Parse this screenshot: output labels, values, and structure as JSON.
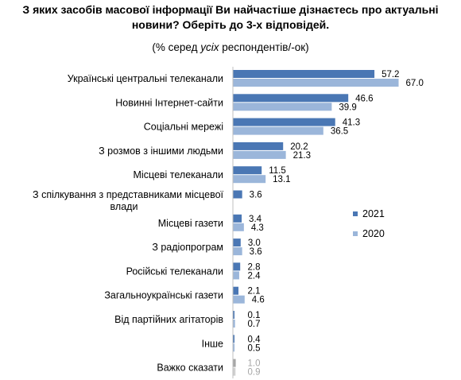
{
  "chart_data": {
    "type": "bar",
    "orientation": "horizontal",
    "title_lines": [
      "З яких засобів масової інформації Ви найчастіше дізнаєтесь про актуальні",
      "новини? Оберіть до 3-х відповідей."
    ],
    "subtitle": {
      "prefix": "(% серед ",
      "emphasis": "усіх",
      "suffix": " респондентів/-ок)"
    },
    "categories": [
      [
        "Українські центральні телеканали"
      ],
      [
        "Новинні Інтернет-сайти"
      ],
      [
        "Соціальні мережі"
      ],
      [
        "З розмов з іншими людьми"
      ],
      [
        "Місцеві телеканали"
      ],
      [
        "З спілкування з представниками місцевої",
        "влади"
      ],
      [
        "Місцеві газети"
      ],
      [
        "З радіопрограм"
      ],
      [
        "Російські телеканали"
      ],
      [
        "Загальноукраїнські газети"
      ],
      [
        "Від партійних агітаторів"
      ],
      [
        "Інше"
      ],
      [
        "Важко сказати"
      ]
    ],
    "series": [
      {
        "name": "2021",
        "color": "#4a77b4",
        "values": [
          57.2,
          46.6,
          41.3,
          20.2,
          11.5,
          3.6,
          3.4,
          3.0,
          2.8,
          2.1,
          0.1,
          0.4,
          1.0
        ],
        "labels": [
          "57.2",
          "46.6",
          "41.3",
          "20.2",
          "11.5",
          "3.6",
          "3.4",
          "3.0",
          "2.8",
          "2.1",
          "0.1",
          "0.4",
          "1.0"
        ]
      },
      {
        "name": "2020",
        "color": "#9bb6da",
        "values": [
          67.0,
          39.9,
          36.5,
          21.3,
          13.1,
          null,
          4.3,
          3.6,
          2.4,
          4.6,
          0.7,
          0.5,
          0.9
        ],
        "labels": [
          "67.0",
          "39.9",
          "36.5",
          "21.3",
          "13.1",
          "",
          "4.3",
          "3.6",
          "2.4",
          "4.6",
          "0.7",
          "0.5",
          "0.9"
        ]
      }
    ],
    "muted_last_category": true,
    "muted_colors": {
      "bar_2021": "#a6a6a6",
      "bar_2020": "#d0d0d0",
      "label": "#a6a6a6"
    },
    "xlim": [
      0,
      70
    ],
    "grid": false,
    "axis_line_color": "#bfbfbf",
    "legend_position": "right"
  }
}
